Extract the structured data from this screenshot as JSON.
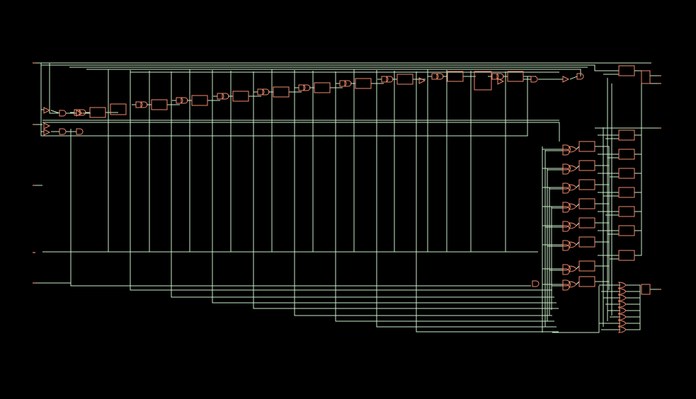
{
  "schematic": {
    "background_color": "#000000",
    "wire_color": "#c9ecc9",
    "cell_color": "#f08a6c",
    "chain_stage_count": 11,
    "flop_count_right_bank": 15,
    "mux_count_right_bank": 8,
    "or_gate_count_bottom": 8,
    "input_port_count": 5,
    "output_port_count": 4
  }
}
